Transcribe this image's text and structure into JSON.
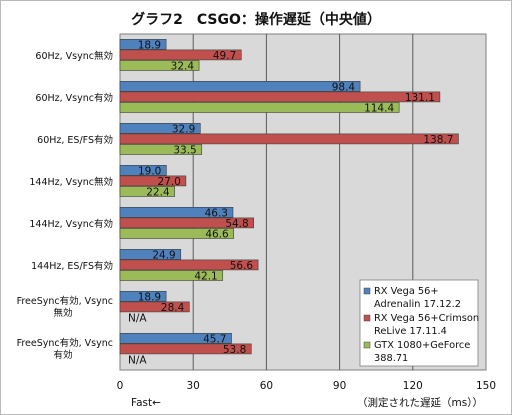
{
  "chart_data": {
    "type": "bar",
    "orientation": "horizontal",
    "title": "グラフ2　CSGO：操作遅延（中央値）",
    "categories": [
      [
        "60Hz, Vsync無効"
      ],
      [
        "60Hz, Vsync有効"
      ],
      [
        "60Hz, ES/FS有効"
      ],
      [
        "144Hz, Vsync無効"
      ],
      [
        "144Hz, Vsync有効"
      ],
      [
        "144Hz, ES/FS有効"
      ],
      [
        "FreeSync有効, Vsync",
        "無効"
      ],
      [
        "FreeSync有効, Vsync",
        "有効"
      ]
    ],
    "series": [
      {
        "name": [
          "RX Vega 56+",
          "Adrenalin 17.12.2"
        ],
        "color": "#4f81bd",
        "values": [
          18.9,
          98.4,
          32.9,
          19.0,
          46.3,
          24.9,
          18.9,
          45.7
        ]
      },
      {
        "name": [
          "RX Vega 56+Crimson",
          "ReLive 17.11.4"
        ],
        "color": "#c0504d",
        "values": [
          49.7,
          131.1,
          138.7,
          27.0,
          54.8,
          56.6,
          28.4,
          53.8
        ]
      },
      {
        "name": [
          "GTX 1080+GeForce",
          "388.71"
        ],
        "color": "#9bbb59",
        "values": [
          32.4,
          114.4,
          33.5,
          22.4,
          46.6,
          42.1,
          null,
          null
        ]
      }
    ],
    "missing_label": "N/A",
    "xlim": [
      0,
      150
    ],
    "xticks": [
      0,
      30,
      60,
      90,
      120,
      150
    ],
    "xlabel": "（測定された遅延（ms））",
    "xnote": "Fast←",
    "grid": true,
    "legend_position": "bottom-right",
    "plot_background": "#d9d9d9"
  }
}
